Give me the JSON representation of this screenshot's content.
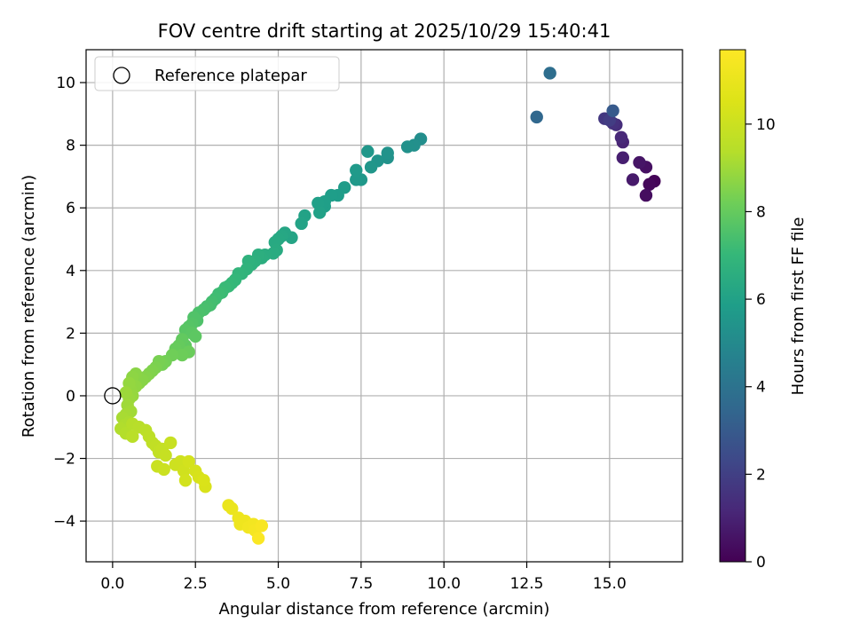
{
  "chart_data": {
    "type": "scatter",
    "title": "FOV centre drift starting at 2025/10/29 15:40:41",
    "xlabel": "Angular distance from reference (arcmin)",
    "ylabel": "Rotation from reference (arcmin)",
    "xlim": [
      -0.8,
      17.2
    ],
    "ylim": [
      -5.3,
      11.05
    ],
    "xticks": [
      0,
      2.5,
      5,
      7.5,
      10,
      12.5,
      15
    ],
    "xtick_labels": [
      "0.0",
      "2.5",
      "5.0",
      "7.5",
      "10.0",
      "12.5",
      "15.0"
    ],
    "yticks": [
      -4,
      -2,
      0,
      2,
      4,
      6,
      8,
      10
    ],
    "ytick_labels": [
      "−4",
      "−2",
      "0",
      "2",
      "4",
      "6",
      "8",
      "10"
    ],
    "grid": true,
    "legend": {
      "position": "top-left",
      "entries": [
        {
          "label": "Reference platepar",
          "marker": "open-circle"
        }
      ]
    },
    "reference_point": {
      "x": 0,
      "y": 0
    },
    "colorbar": {
      "label": "Hours from first FF file",
      "colormap": "viridis",
      "range": [
        0,
        11.7
      ],
      "ticks": [
        0,
        2,
        4,
        6,
        8,
        10
      ],
      "tick_labels": [
        "0",
        "2",
        "4",
        "6",
        "8",
        "10"
      ]
    },
    "series": [
      {
        "name": "FOV centre",
        "points": [
          [
            16.35,
            6.85,
            0.1
          ],
          [
            16.2,
            6.75,
            0.2
          ],
          [
            16.1,
            6.4,
            0.35
          ],
          [
            16.1,
            7.3,
            0.45
          ],
          [
            15.9,
            7.45,
            0.6
          ],
          [
            15.7,
            6.9,
            0.75
          ],
          [
            15.4,
            7.6,
            0.9
          ],
          [
            15.4,
            8.1,
            1.05
          ],
          [
            15.35,
            8.25,
            1.2
          ],
          [
            15.2,
            8.65,
            1.35
          ],
          [
            15.1,
            8.7,
            1.5
          ],
          [
            14.85,
            8.85,
            1.7
          ],
          [
            15.0,
            8.8,
            1.9
          ],
          [
            15.1,
            9.1,
            3.0
          ],
          [
            12.8,
            8.9,
            3.5
          ],
          [
            13.2,
            10.3,
            3.8
          ],
          [
            9.3,
            8.2,
            5.2
          ],
          [
            9.1,
            8.0,
            5.25
          ],
          [
            8.9,
            7.95,
            5.3
          ],
          [
            8.3,
            7.6,
            5.35
          ],
          [
            8.3,
            7.75,
            5.4
          ],
          [
            8.0,
            7.5,
            5.45
          ],
          [
            7.8,
            7.3,
            5.5
          ],
          [
            7.7,
            7.8,
            5.55
          ],
          [
            7.5,
            6.9,
            5.6
          ],
          [
            7.35,
            6.9,
            5.65
          ],
          [
            7.35,
            7.2,
            5.7
          ],
          [
            7.0,
            6.65,
            5.75
          ],
          [
            6.8,
            6.4,
            5.8
          ],
          [
            6.6,
            6.4,
            5.85
          ],
          [
            6.4,
            6.05,
            5.9
          ],
          [
            6.4,
            6.2,
            5.92
          ],
          [
            6.2,
            6.15,
            5.95
          ],
          [
            6.25,
            5.85,
            6.0
          ],
          [
            5.8,
            5.75,
            6.05
          ],
          [
            5.7,
            5.5,
            6.1
          ],
          [
            5.4,
            5.05,
            6.15
          ],
          [
            5.2,
            5.2,
            6.2
          ],
          [
            5.1,
            5.1,
            6.25
          ],
          [
            5.0,
            5.0,
            6.3
          ],
          [
            4.9,
            4.9,
            6.35
          ],
          [
            4.95,
            4.65,
            6.4
          ],
          [
            4.85,
            4.55,
            6.45
          ],
          [
            4.6,
            4.5,
            6.5
          ],
          [
            4.5,
            4.4,
            6.55
          ],
          [
            4.4,
            4.5,
            6.6
          ],
          [
            4.3,
            4.3,
            6.65
          ],
          [
            4.2,
            4.2,
            6.7
          ],
          [
            4.1,
            4.3,
            6.75
          ],
          [
            4.05,
            4.05,
            6.8
          ],
          [
            3.9,
            3.9,
            6.85
          ],
          [
            3.8,
            3.9,
            6.9
          ],
          [
            3.7,
            3.7,
            6.95
          ],
          [
            3.6,
            3.6,
            7.0
          ],
          [
            3.5,
            3.5,
            7.05
          ],
          [
            3.4,
            3.45,
            7.1
          ],
          [
            3.3,
            3.3,
            7.15
          ],
          [
            3.2,
            3.25,
            7.2
          ],
          [
            3.1,
            3.1,
            7.25
          ],
          [
            3.0,
            3.0,
            7.3
          ],
          [
            2.95,
            2.9,
            7.35
          ],
          [
            2.85,
            2.85,
            7.4
          ],
          [
            2.75,
            2.75,
            7.45
          ],
          [
            2.6,
            2.65,
            7.5
          ],
          [
            2.55,
            2.4,
            7.55
          ],
          [
            2.45,
            2.5,
            7.6
          ],
          [
            2.4,
            2.3,
            7.65
          ],
          [
            2.3,
            2.2,
            7.7
          ],
          [
            2.2,
            2.1,
            7.75
          ],
          [
            2.4,
            2.0,
            7.8
          ],
          [
            2.5,
            1.9,
            7.85
          ],
          [
            2.2,
            1.6,
            7.9
          ],
          [
            2.1,
            1.8,
            7.95
          ],
          [
            2.0,
            1.6,
            8.0
          ],
          [
            1.9,
            1.5,
            8.05
          ],
          [
            2.3,
            1.4,
            8.1
          ],
          [
            2.1,
            1.3,
            8.15
          ],
          [
            1.8,
            1.3,
            8.2
          ],
          [
            1.6,
            1.1,
            8.25
          ],
          [
            1.5,
            1.0,
            8.3
          ],
          [
            1.4,
            1.1,
            8.35
          ],
          [
            1.3,
            0.9,
            8.4
          ],
          [
            1.2,
            0.8,
            8.45
          ],
          [
            1.1,
            0.7,
            8.5
          ],
          [
            1.0,
            0.6,
            8.55
          ],
          [
            0.9,
            0.5,
            8.6
          ],
          [
            0.8,
            0.4,
            8.62
          ],
          [
            0.7,
            0.7,
            8.65
          ],
          [
            0.6,
            0.6,
            8.7
          ],
          [
            0.7,
            0.3,
            8.75
          ],
          [
            0.55,
            0.2,
            8.8
          ],
          [
            0.5,
            0.4,
            8.82
          ],
          [
            0.6,
            0.0,
            8.85
          ],
          [
            0.5,
            -0.1,
            8.9
          ],
          [
            0.4,
            0.1,
            8.95
          ],
          [
            0.45,
            -0.3,
            9.0
          ],
          [
            0.55,
            -0.5,
            9.05
          ],
          [
            0.4,
            -0.6,
            9.1
          ],
          [
            0.3,
            -0.7,
            9.15
          ],
          [
            0.5,
            -0.85,
            9.2
          ],
          [
            0.35,
            -0.95,
            9.25
          ],
          [
            0.25,
            -1.05,
            9.3
          ],
          [
            0.4,
            -1.2,
            9.35
          ],
          [
            0.6,
            -0.9,
            9.4
          ],
          [
            0.8,
            -1.0,
            9.45
          ],
          [
            0.6,
            -1.3,
            9.5
          ],
          [
            1.0,
            -1.1,
            9.55
          ],
          [
            1.1,
            -1.3,
            9.6
          ],
          [
            1.2,
            -1.5,
            9.65
          ],
          [
            1.3,
            -1.6,
            9.7
          ],
          [
            1.4,
            -1.8,
            9.75
          ],
          [
            1.5,
            -1.7,
            9.8
          ],
          [
            1.6,
            -1.9,
            9.85
          ],
          [
            1.75,
            -1.5,
            9.9
          ],
          [
            1.35,
            -2.25,
            9.95
          ],
          [
            1.55,
            -2.35,
            10.0
          ],
          [
            1.9,
            -2.2,
            10.05
          ],
          [
            2.05,
            -2.1,
            10.1
          ],
          [
            2.15,
            -2.4,
            10.15
          ],
          [
            2.2,
            -2.7,
            10.2
          ],
          [
            2.3,
            -2.1,
            10.25
          ],
          [
            2.5,
            -2.4,
            10.3
          ],
          [
            2.6,
            -2.6,
            10.35
          ],
          [
            2.8,
            -2.9,
            10.4
          ],
          [
            2.75,
            -2.7,
            10.45
          ],
          [
            3.5,
            -3.5,
            11.0
          ],
          [
            3.6,
            -3.6,
            11.05
          ],
          [
            3.8,
            -3.9,
            11.1
          ],
          [
            3.85,
            -4.1,
            11.15
          ],
          [
            4.0,
            -4.0,
            11.2
          ],
          [
            4.1,
            -4.2,
            11.3
          ],
          [
            4.25,
            -4.1,
            11.35
          ],
          [
            4.3,
            -4.3,
            11.4
          ],
          [
            4.5,
            -4.15,
            11.5
          ],
          [
            4.4,
            -4.55,
            11.6
          ]
        ]
      }
    ]
  }
}
